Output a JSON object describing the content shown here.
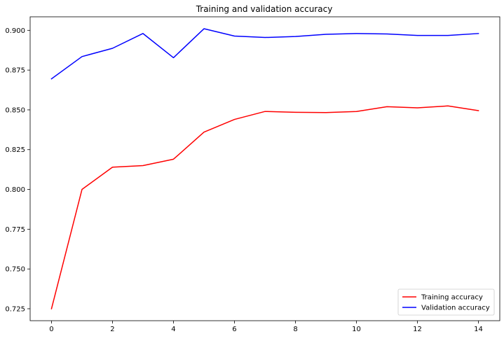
{
  "chart_data": {
    "type": "line",
    "title": "Training and validation accuracy",
    "xlabel": "",
    "ylabel": "",
    "xlim": [
      -0.7,
      14.7
    ],
    "ylim": [
      0.7175,
      0.9085
    ],
    "xticks": [
      0,
      2,
      4,
      6,
      8,
      10,
      12,
      14
    ],
    "yticks": [
      0.725,
      0.75,
      0.775,
      0.8,
      0.825,
      0.85,
      0.875,
      0.9
    ],
    "ytick_labels": [
      "0.725",
      "0.750",
      "0.775",
      "0.800",
      "0.825",
      "0.850",
      "0.875",
      "0.900"
    ],
    "grid": false,
    "legend_position": "lower-right",
    "x": [
      0,
      1,
      2,
      3,
      4,
      5,
      6,
      7,
      8,
      9,
      10,
      11,
      12,
      13,
      14
    ],
    "series": [
      {
        "name": "Training accuracy",
        "color": "#ff0000",
        "values": [
          0.725,
          0.8,
          0.814,
          0.815,
          0.819,
          0.836,
          0.844,
          0.849,
          0.8485,
          0.8483,
          0.849,
          0.852,
          0.8513,
          0.8525,
          0.8495
        ]
      },
      {
        "name": "Validation accuracy",
        "color": "#0000ff",
        "values": [
          0.8695,
          0.8835,
          0.8887,
          0.898,
          0.8828,
          0.901,
          0.8964,
          0.8955,
          0.8961,
          0.8975,
          0.898,
          0.8977,
          0.8968,
          0.8968,
          0.898
        ]
      }
    ]
  }
}
